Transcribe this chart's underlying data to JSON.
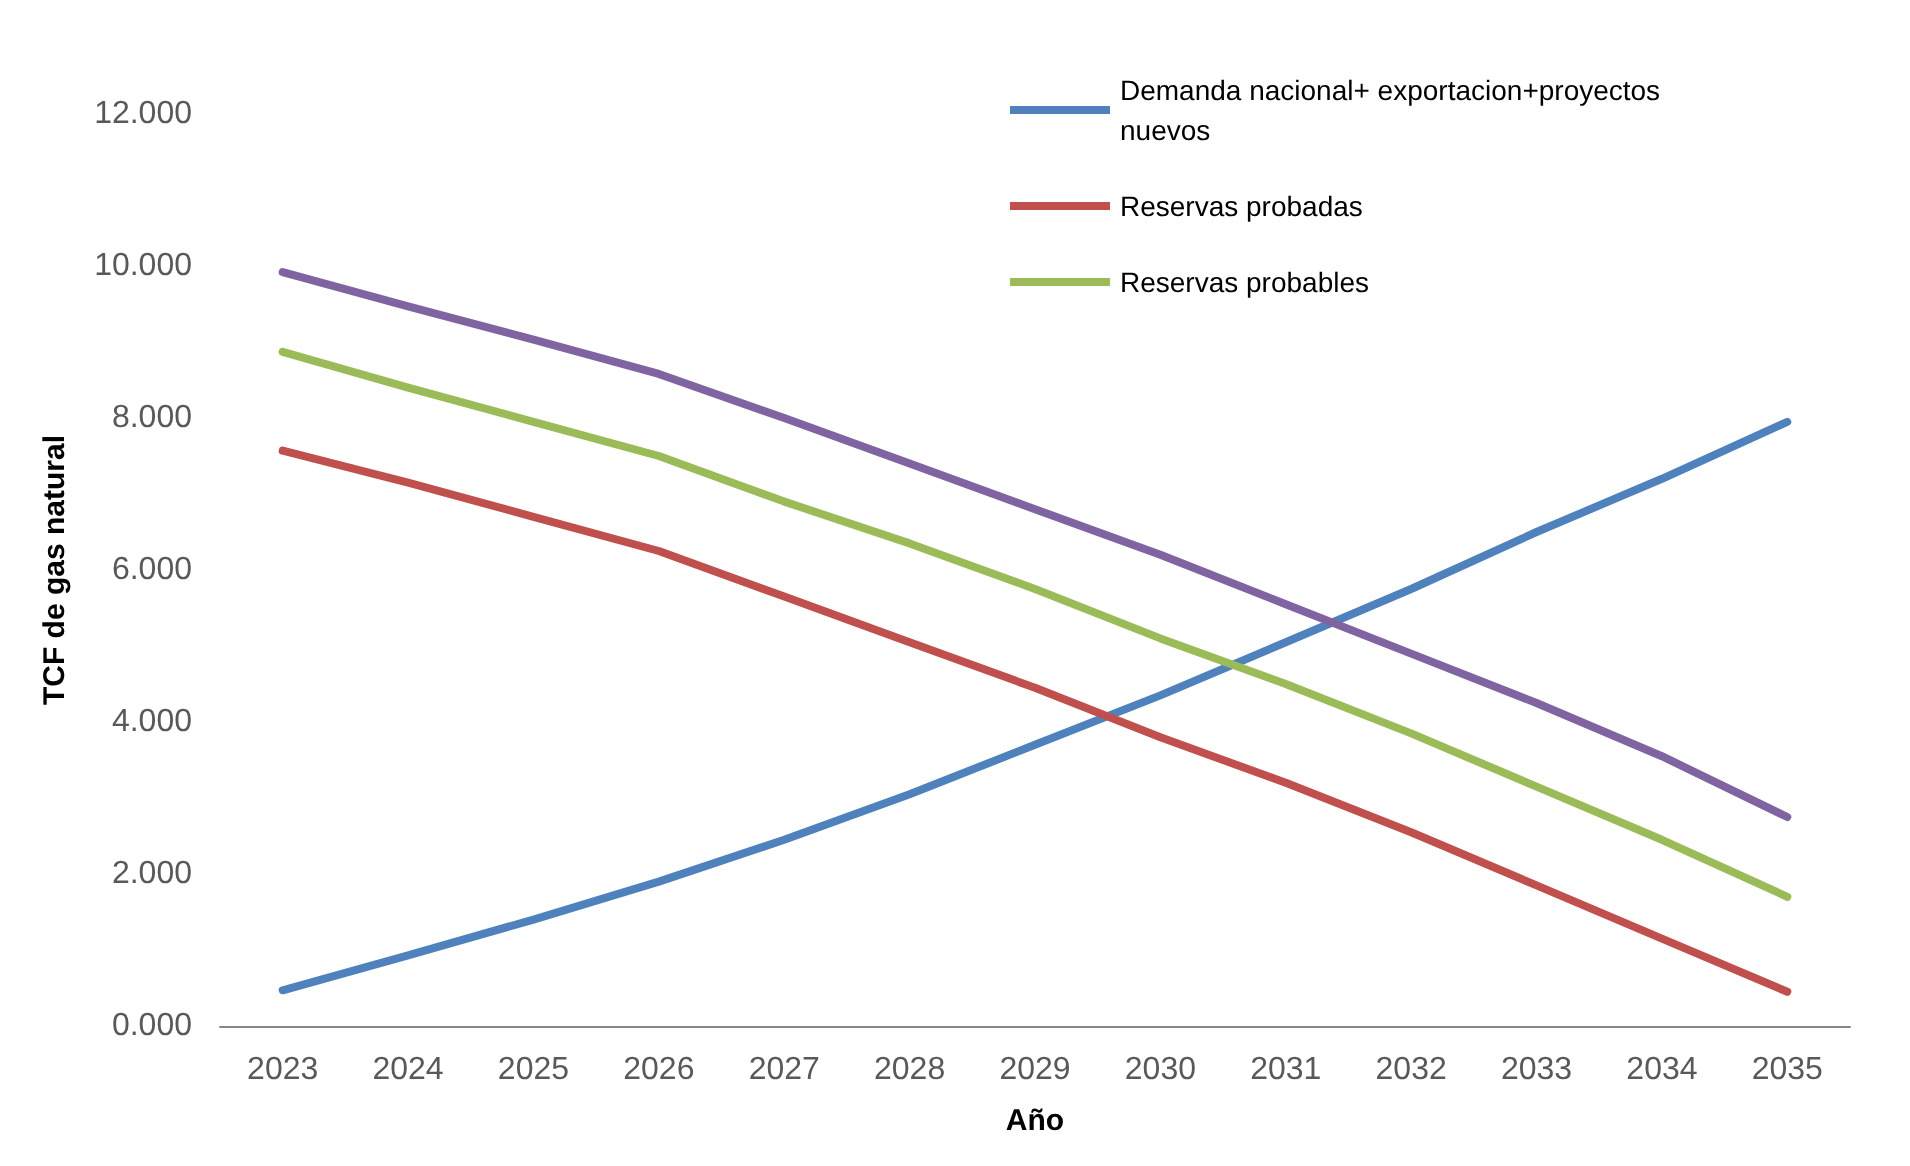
{
  "chart_data": {
    "type": "line",
    "xlabel": "Año",
    "ylabel": "TCF de gas natural",
    "categories": [
      "2023",
      "2024",
      "2025",
      "2026",
      "2027",
      "2028",
      "2029",
      "2030",
      "2031",
      "2032",
      "2033",
      "2034",
      "2035"
    ],
    "series": [
      {
        "name": "Demanda nacional+ exportacion+proyectos nuevos",
        "color": "#4f81bd",
        "values": [
          0.47,
          0.93,
          1.4,
          1.9,
          2.45,
          3.05,
          3.7,
          4.35,
          5.05,
          5.75,
          6.5,
          7.2,
          7.95
        ]
      },
      {
        "name": "Reservas probadas",
        "color": "#c0504d",
        "values": [
          7.57,
          7.15,
          6.7,
          6.25,
          5.65,
          5.05,
          4.45,
          3.8,
          3.2,
          2.55,
          1.85,
          1.15,
          0.45
        ]
      },
      {
        "name": "Reservas probables",
        "color": "#9bbb59",
        "values": [
          8.87,
          8.4,
          7.95,
          7.5,
          6.9,
          6.35,
          5.75,
          5.1,
          4.5,
          3.85,
          3.15,
          2.45,
          1.7
        ]
      },
      {
        "color": "#8064a2",
        "values": [
          9.92,
          9.47,
          9.03,
          8.58,
          8.0,
          7.4,
          6.8,
          6.2,
          5.55,
          4.9,
          4.25,
          3.55,
          2.75
        ]
      }
    ],
    "ylim": [
      0,
      12
    ],
    "yticks": [
      {
        "value": 0,
        "label": "0.000"
      },
      {
        "value": 2,
        "label": "2.000"
      },
      {
        "value": 4,
        "label": "4.000"
      },
      {
        "value": 6,
        "label": "6.000"
      },
      {
        "value": 8,
        "label": "8.000"
      },
      {
        "value": 10,
        "label": "10.000"
      },
      {
        "value": 12,
        "label": "12.000"
      }
    ],
    "grid": false,
    "legend": "top right",
    "marker": "none",
    "line_style": "solid"
  }
}
